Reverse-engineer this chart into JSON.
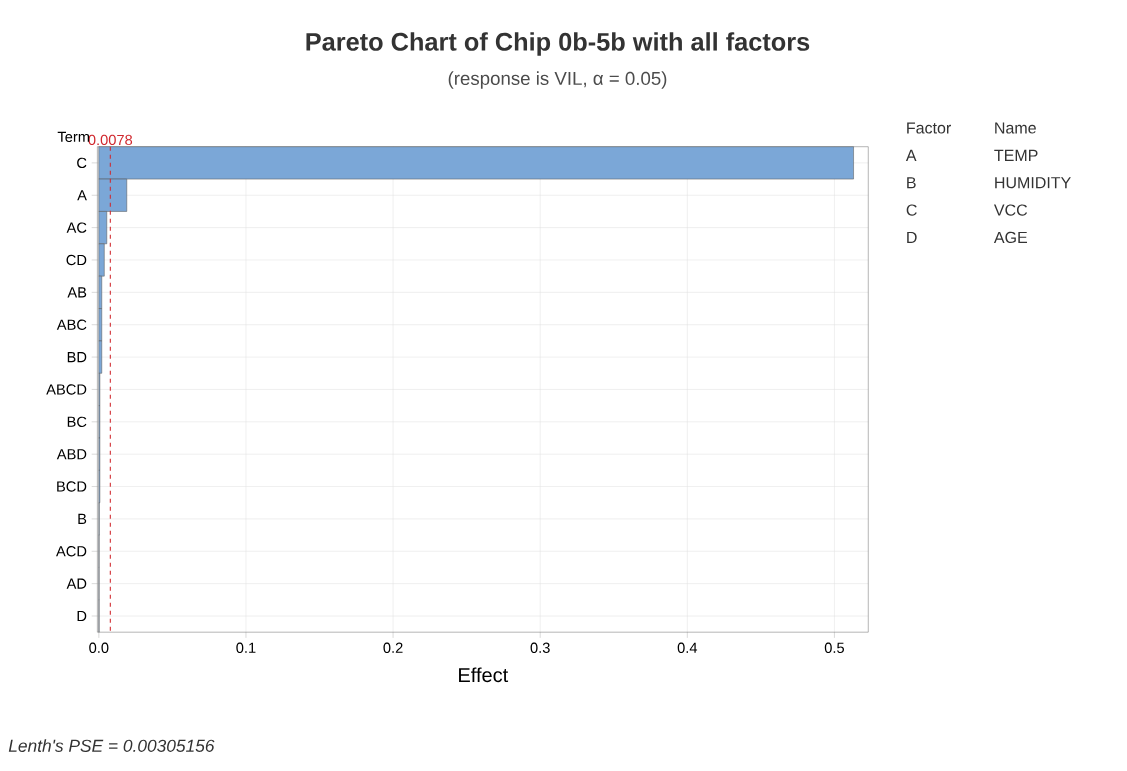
{
  "chart_data": {
    "type": "bar",
    "orientation": "horizontal",
    "title": "Pareto Chart of Chip 0b-5b with all factors",
    "subtitle": "(response is VIL, α = 0.05)",
    "xlabel": "Effect",
    "ylabel": "Term",
    "categories": [
      "C",
      "A",
      "AC",
      "CD",
      "AB",
      "ABC",
      "BD",
      "ABCD",
      "BC",
      "ABD",
      "BCD",
      "B",
      "ACD",
      "AD",
      "D"
    ],
    "values": [
      0.513,
      0.019,
      0.0054,
      0.0037,
      0.002,
      0.002,
      0.002,
      0.0007,
      0.0007,
      0.0007,
      0.0007,
      0.0003,
      0.0002,
      0.0002,
      0.0002
    ],
    "color": "#7ba7d7",
    "xlim": [
      -0.001,
      0.523
    ],
    "xticks": [
      {
        "value": 0,
        "label": "0.0"
      },
      {
        "value": 0.1,
        "label": "0.1"
      },
      {
        "value": 0.2,
        "label": "0.2"
      },
      {
        "value": 0.3,
        "label": "0.3"
      },
      {
        "value": 0.4,
        "label": "0.4"
      },
      {
        "value": 0.5,
        "label": "0.5"
      }
    ],
    "grid": true,
    "ref_lines": [
      {
        "axis": "x",
        "value": 0.0078,
        "label": "0.0078",
        "color": "#d0282e",
        "line_style": "dashed"
      }
    ],
    "annotations": [
      "Factor",
      "Name",
      "A",
      "TEMP",
      "B",
      "HUMIDITY",
      "C",
      "VCC",
      "D",
      "AGE",
      "Lenth's PSE = 0.00305156"
    ]
  }
}
